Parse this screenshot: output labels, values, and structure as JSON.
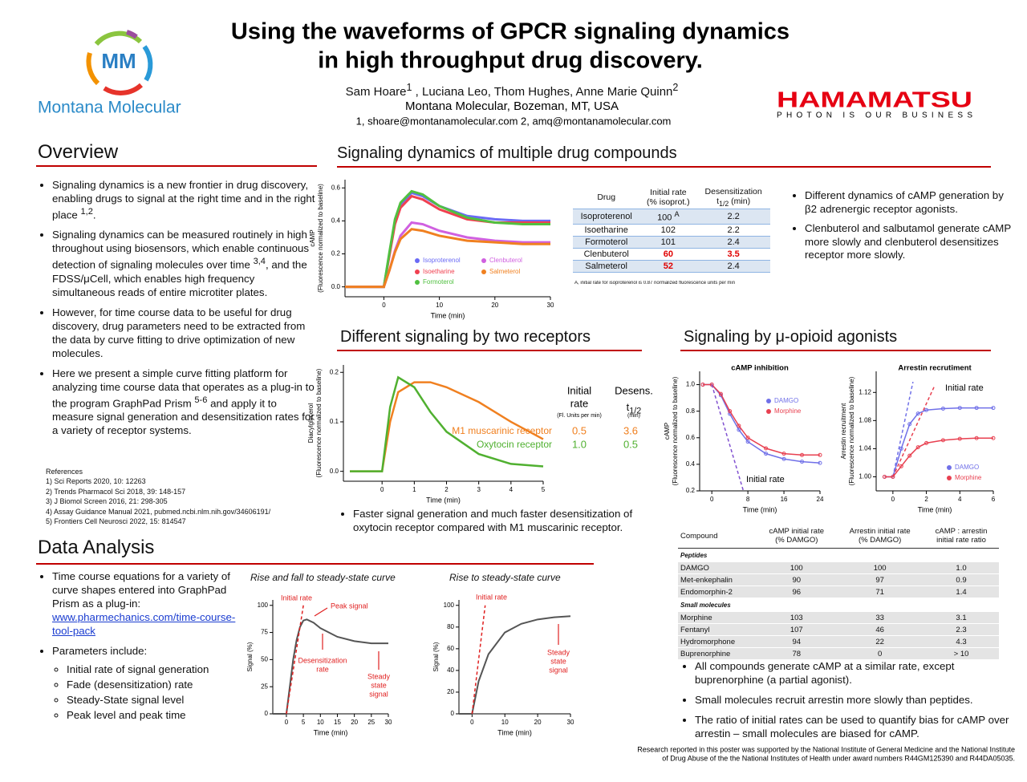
{
  "header": {
    "logo_initials": "MM",
    "logo_name": "Montana Molecular",
    "title_lines": [
      "Using the waveforms of GPCR signaling dynamics",
      "in high throughput drug discovery."
    ],
    "authors": [
      "Sam Hoare",
      {
        "sup": "1"
      },
      " , Luciana Leo, Thom Hughes, Anne Marie Quinn",
      {
        "sup": "2"
      }
    ],
    "affiliation": "Montana Molecular, Bozeman, MT, USA",
    "emails": "1, shoare@montanamolecular.com 2, amq@montanamolecular.com",
    "sponsor_name": "HAMAMATSU",
    "sponsor_tagline": "PHOTON IS OUR BUSINESS"
  },
  "overview": {
    "heading": "Overview",
    "bullets": [
      [
        "Signaling dynamics is a new frontier in drug discovery, enabling drugs to signal at the right time and in the right place ",
        {
          "sup": "1,2"
        },
        "."
      ],
      [
        "Signaling dynamics can be measured routinely in high throughout using biosensors, which enable continuous detection of signaling molecules over time ",
        {
          "sup": "3,4"
        },
        ", and the FDSS/μCell, which enables high frequency simultaneous reads of entire microtiter plates."
      ],
      [
        "However, for time course data to be useful for drug discovery, drug parameters need to be extracted from the data by curve fitting to drive optimization of new molecules."
      ],
      [
        "Here we present a simple curve fitting platform for analyzing time course data that operates as a plug-in to the program GraphPad Prism ",
        {
          "sup": "5-6"
        },
        " and apply it to measure signal generation and desensitization rates for a variety of receptor systems."
      ]
    ],
    "references_heading": "References",
    "references": [
      "1) Sci Reports 2020, 10: 12263",
      "2) Trends Pharmacol Sci 2018, 39: 148-157",
      "3) J Biomol Screen 2016, 21: 298-305",
      "4) Assay Guidance Manual 2021, pubmed.ncbi.nlm.nih.gov/34606191/",
      "5) Frontiers Cell Neurosci 2022, 15: 814547"
    ]
  },
  "data_analysis": {
    "heading": "Data Analysis",
    "bullets": [
      [
        "Time course equations for a variety of curve shapes entered into GraphPad Prism as a plug-in: ",
        {
          "link": "www.pharmechanics.com/time-course-tool-pack"
        }
      ],
      [
        "Parameters include:"
      ]
    ],
    "sub_bullets": [
      "Initial rate of signal generation",
      "Fade (desensitization) rate",
      "Steady-State signal level",
      "Peak level and peak time"
    ],
    "charts": [
      {
        "title": "Rise and fall to steady-state curve",
        "xlabel": "Time (min)",
        "ylabel": [
          "Signal (%)"
        ],
        "xlim": [
          -4,
          30
        ],
        "ylim": [
          0,
          105
        ],
        "xticks": [
          0,
          5,
          10,
          15,
          20,
          25,
          30
        ],
        "yticks": [
          0,
          25,
          50,
          75,
          100
        ],
        "series": [
          {
            "color": "#555555",
            "x": [
              -4,
              0,
              1,
              2,
              3,
              4,
              5,
              6,
              8,
              10,
              15,
              20,
              25,
              30
            ],
            "values": [
              0,
              0,
              25,
              50,
              68,
              80,
              86,
              87,
              84,
              79,
              71,
              67,
              65,
              65
            ]
          }
        ],
        "fit_lines": [
          {
            "color": "#e02020",
            "x": [
              0,
              5
            ],
            "values": [
              0,
              100
            ]
          }
        ],
        "annotations": {
          "initial_rate": "Initial rate",
          "peak": "Peak signal",
          "desens": [
            "Desensitization",
            "rate"
          ],
          "steady": [
            "Steady",
            "state",
            "signal"
          ]
        }
      },
      {
        "title": "Rise to steady-state curve",
        "xlabel": "Time (min)",
        "ylabel": [
          "Signal (%)"
        ],
        "xlim": [
          -4,
          30
        ],
        "ylim": [
          0,
          105
        ],
        "xticks": [
          0,
          10,
          20,
          30
        ],
        "yticks": [
          0,
          20,
          40,
          60,
          80,
          100
        ],
        "series": [
          {
            "color": "#555555",
            "x": [
              -4,
              0,
              2,
              5,
              10,
              15,
              20,
              25,
              30
            ],
            "values": [
              0,
              0,
              30,
              55,
              75,
              83,
              87,
              89,
              90
            ]
          }
        ],
        "fit_lines": [
          {
            "color": "#e02020",
            "x": [
              0,
              4
            ],
            "values": [
              0,
              100
            ]
          }
        ],
        "annotations": {
          "initial_rate": "Initial rate",
          "steady": [
            "Steady",
            "state",
            "signal"
          ]
        }
      }
    ]
  },
  "drug_compounds": {
    "heading": "Signaling dynamics of multiple drug compounds",
    "chart": {
      "xlabel": "Time (min)",
      "ylabel": [
        "cAMP",
        "(Fluorescence normalized to baseline)"
      ],
      "xlim": [
        -7,
        30
      ],
      "ylim": [
        -0.06,
        0.65
      ],
      "xticks": [
        0,
        10,
        20,
        30
      ],
      "yticks": [
        {
          "value": 0,
          "label": "0.0"
        },
        0.2,
        0.4,
        0.6
      ],
      "series": [
        {
          "name": "Isoproterenol",
          "color": "#6a6af5",
          "x": [
            -7,
            0,
            1,
            2,
            3,
            5,
            7,
            10,
            15,
            20,
            25,
            30
          ],
          "values": [
            0,
            0,
            0.2,
            0.4,
            0.5,
            0.57,
            0.55,
            0.49,
            0.43,
            0.41,
            0.4,
            0.4
          ]
        },
        {
          "name": "Isoetharine",
          "color": "#f04050",
          "x": [
            -7,
            0,
            1,
            2,
            3,
            5,
            7,
            10,
            15,
            20,
            25,
            30
          ],
          "values": [
            0,
            0,
            0.19,
            0.38,
            0.48,
            0.55,
            0.53,
            0.47,
            0.41,
            0.39,
            0.39,
            0.39
          ]
        },
        {
          "name": "Formoterol",
          "color": "#50c040",
          "x": [
            -7,
            0,
            1,
            2,
            3,
            5,
            7,
            10,
            15,
            20,
            25,
            30
          ],
          "values": [
            0,
            0,
            0.21,
            0.41,
            0.51,
            0.58,
            0.56,
            0.49,
            0.42,
            0.39,
            0.38,
            0.38
          ]
        },
        {
          "name": "Clenbuterol",
          "color": "#d060e0",
          "x": [
            -7,
            0,
            1,
            2,
            3,
            5,
            7,
            10,
            15,
            20,
            25,
            30
          ],
          "values": [
            0,
            0,
            0.1,
            0.22,
            0.31,
            0.39,
            0.38,
            0.34,
            0.3,
            0.28,
            0.27,
            0.27
          ]
        },
        {
          "name": "Salmeterol",
          "color": "#f08020",
          "x": [
            -7,
            0,
            1,
            2,
            3,
            5,
            7,
            10,
            15,
            20,
            25,
            30
          ],
          "values": [
            0,
            0,
            0.1,
            0.21,
            0.29,
            0.35,
            0.34,
            0.31,
            0.28,
            0.27,
            0.26,
            0.26
          ]
        }
      ]
    },
    "table": {
      "header": [
        [
          "Drug"
        ],
        [
          "Initial rate",
          "(% isoprot.)"
        ],
        [
          "Desensitization",
          [
            "t",
            {
              "sub": "1/2"
            },
            " (min)"
          ]
        ]
      ],
      "rows": [
        [
          "Isoproterenol",
          [
            "100 ",
            {
              "sup": "A"
            }
          ],
          "2.2"
        ],
        [
          "Isoetharine",
          "102",
          "2.2"
        ],
        [
          "Formoterol",
          "101",
          "2.4"
        ],
        [
          "Clenbuterol",
          "60",
          "3.5"
        ],
        [
          "Salmeterol",
          "52",
          "2.4"
        ]
      ],
      "footnote": "A, initial rate for isoproterenol is 0.87 normalized fluorescence units per min"
    },
    "bullets": [
      "Different dynamics of cAMP generation by β2 adrenergic receptor agonists.",
      "Clenbuterol and salbutamol generate cAMP more slowly and clenbuterol desensitizes receptor more slowly."
    ]
  },
  "receptors": {
    "heading": "Different signaling by two receptors",
    "chart": {
      "xlabel": "Time (min)",
      "ylabel": [
        "Diacylglycerol",
        "(Fluorescence normalized to baseline)"
      ],
      "xlim": [
        -1.2,
        5
      ],
      "ylim": [
        -0.02,
        0.215
      ],
      "xticks": [
        0,
        1,
        2,
        3,
        4,
        5
      ],
      "yticks": [
        {
          "value": 0,
          "label": "0.0"
        },
        0.1,
        0.2
      ],
      "series": [
        {
          "name": "M1 muscarinic receptor",
          "color": "#f08020",
          "x": [
            -1,
            0,
            0.25,
            0.5,
            1,
            1.5,
            2,
            3,
            4,
            5
          ],
          "values": [
            0,
            0,
            0.1,
            0.16,
            0.18,
            0.18,
            0.17,
            0.14,
            0.1,
            0.065
          ]
        },
        {
          "name": "Oxytocin receptor",
          "color": "#50b030",
          "x": [
            -1,
            0,
            0.25,
            0.5,
            1,
            1.5,
            2,
            3,
            4,
            5
          ],
          "values": [
            0,
            0,
            0.13,
            0.19,
            0.17,
            0.12,
            0.08,
            0.035,
            0.015,
            0.01
          ]
        }
      ]
    },
    "rate_header": [
      "Initial",
      "rate"
    ],
    "rate_unit": "(Fl. Units per min)",
    "desens_header": "Desens.",
    "t_half": [
      "t",
      {
        "sub": "1/2"
      }
    ],
    "desens_unit": "(min)",
    "rows": [
      [
        "0.5",
        "3.6"
      ],
      [
        "1.0",
        "0.5"
      ]
    ],
    "bullet": "Faster signal generation and much faster desensitization of oxytocin receptor compared with M1 muscarinic receptor."
  },
  "opioid": {
    "heading": "Signaling by μ-opioid agonists",
    "charts": [
      {
        "title": "cAMP inhibition",
        "xlabel": "Time (min)",
        "ylabel": [
          "cAMP",
          "(Fluorescence normalized to baseline)"
        ],
        "xlim": [
          -2.7,
          24
        ],
        "ylim": [
          0.2,
          1.1
        ],
        "xticks": [
          0,
          8,
          16,
          24
        ],
        "yticks": [
          0.2,
          0.4,
          0.6,
          0.8,
          {
            "value": 1,
            "label": "1.0"
          }
        ],
        "series": [
          {
            "name": "DAMGO",
            "color": "#7070e8",
            "x": [
              -2,
              0,
              2,
              4,
              6,
              8,
              12,
              16,
              20,
              24
            ],
            "values": [
              1,
              1,
              0.92,
              0.78,
              0.66,
              0.57,
              0.48,
              0.44,
              0.42,
              0.41
            ]
          },
          {
            "name": "Morphine",
            "color": "#e84050",
            "x": [
              -2,
              0,
              2,
              4,
              6,
              8,
              12,
              16,
              20,
              24
            ],
            "values": [
              1,
              1,
              0.93,
              0.8,
              0.69,
              0.6,
              0.52,
              0.48,
              0.47,
              0.47
            ]
          }
        ],
        "fit_lines": [
          {
            "color": "#8050d0",
            "x": [
              0,
              7
            ],
            "values": [
              1,
              0.2
            ]
          }
        ],
        "annotation": "Initial rate"
      },
      {
        "title": "Arrestin recrutiment",
        "xlabel": "Time (min)",
        "ylabel": [
          "Arrestin recruitment",
          "(Fluorescence normalized to baseline)"
        ],
        "xlim": [
          -1,
          6
        ],
        "ylim": [
          0.98,
          1.15
        ],
        "xticks": [
          0,
          2,
          4,
          6
        ],
        "yticks": [
          {
            "value": 1,
            "label": "1.00"
          },
          1.04,
          1.08,
          1.12
        ],
        "series": [
          {
            "name": "DAMGO",
            "color": "#7070e8",
            "x": [
              -0.5,
              0,
              0.5,
              1,
              1.5,
              2,
              3,
              4,
              5,
              6
            ],
            "values": [
              1,
              1,
              1.04,
              1.075,
              1.09,
              1.095,
              1.097,
              1.098,
              1.098,
              1.098
            ]
          },
          {
            "name": "Morphine",
            "color": "#e84050",
            "x": [
              -0.5,
              0,
              0.5,
              1,
              1.5,
              2,
              3,
              4,
              5,
              6
            ],
            "values": [
              1,
              1,
              1.015,
              1.03,
              1.042,
              1.048,
              1.052,
              1.054,
              1.055,
              1.055
            ]
          }
        ],
        "fit_lines": [
          {
            "color": "#7070e8",
            "x": [
              0,
              1.2
            ],
            "values": [
              1,
              1.135
            ]
          },
          {
            "color": "#e84050",
            "x": [
              0,
              2.5
            ],
            "values": [
              1,
              1.13
            ]
          }
        ],
        "annotation": "Initial rate"
      }
    ],
    "table": {
      "header": [
        [
          "Compound"
        ],
        [
          "cAMP initial rate",
          "(% DAMGO)"
        ],
        [
          "Arrestin initial rate",
          "(% DAMGO)"
        ],
        [
          "cAMP : arrestin",
          "initial rate ratio"
        ]
      ],
      "groups": [
        {
          "name": "Peptides",
          "rows": [
            [
              "DAMGO",
              "100",
              "100",
              "1.0"
            ],
            [
              "Met-enkephalin",
              "90",
              "97",
              "0.9"
            ],
            [
              "Endomorphin-2",
              "96",
              "71",
              "1.4"
            ]
          ]
        },
        {
          "name": "Small molecules",
          "rows": [
            [
              "Morphine",
              "103",
              "33",
              "3.1"
            ],
            [
              "Fentanyl",
              "107",
              "46",
              "2.3"
            ],
            [
              "Hydromorphone",
              "94",
              "22",
              "4.3"
            ],
            [
              "Buprenorphine",
              "78",
              "0",
              "> 10"
            ]
          ]
        }
      ]
    },
    "bullets": [
      "All compounds generate cAMP at a similar rate, except buprenorphine (a partial agonist).",
      "Small molecules recruit arrestin more slowly than peptides.",
      "The ratio of initial rates can be used to quantify bias for cAMP over arrestin – small molecules are biased for cAMP."
    ]
  },
  "footer": [
    "Research reported in this poster was supported by the National Institute of General Medicine and the National Institute",
    "of Drug Abuse of the the National Institutes of Health under award numbers R44GM125390 and R44DA05035."
  ]
}
